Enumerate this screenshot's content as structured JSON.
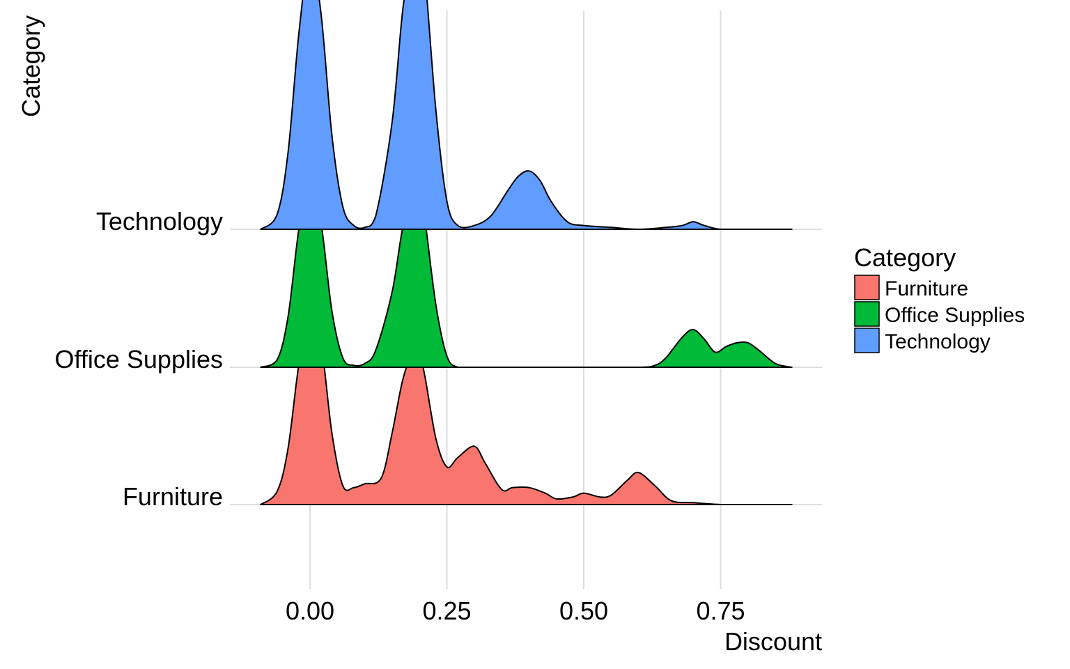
{
  "chart_data": {
    "type": "ridgeline",
    "title": "",
    "xlabel": "Discount",
    "ylabel": "Category",
    "xlim": [
      -0.1,
      0.88
    ],
    "xticks": [
      "0.00",
      "0.25",
      "0.50",
      "0.75"
    ],
    "xtick_values": [
      0,
      0.25,
      0.5,
      0.75
    ],
    "grid": true,
    "legend": {
      "title": "Category",
      "position": "right"
    },
    "series": [
      {
        "name": "Furniture",
        "color": "#F8766D",
        "density_x": [
          -0.09,
          -0.06,
          -0.04,
          -0.02,
          0.0,
          0.02,
          0.04,
          0.06,
          0.08,
          0.1,
          0.13,
          0.15,
          0.17,
          0.19,
          0.2,
          0.21,
          0.23,
          0.25,
          0.27,
          0.3,
          0.32,
          0.35,
          0.37,
          0.4,
          0.43,
          0.45,
          0.48,
          0.5,
          0.53,
          0.55,
          0.58,
          0.6,
          0.63,
          0.66,
          0.7,
          0.75,
          0.8,
          0.88
        ],
        "density_y": [
          0.0,
          0.07,
          0.3,
          0.75,
          1.0,
          0.86,
          0.38,
          0.1,
          0.09,
          0.11,
          0.14,
          0.38,
          0.67,
          0.82,
          0.8,
          0.68,
          0.35,
          0.2,
          0.25,
          0.31,
          0.22,
          0.08,
          0.09,
          0.09,
          0.06,
          0.03,
          0.04,
          0.06,
          0.04,
          0.05,
          0.13,
          0.17,
          0.1,
          0.02,
          0.01,
          0.0,
          0.0,
          0.0
        ]
      },
      {
        "name": "Office Supplies",
        "color": "#00BA38",
        "density_x": [
          -0.09,
          -0.06,
          -0.04,
          -0.02,
          0.0,
          0.02,
          0.04,
          0.06,
          0.08,
          0.1,
          0.12,
          0.15,
          0.17,
          0.19,
          0.2,
          0.21,
          0.23,
          0.25,
          0.27,
          0.3,
          0.4,
          0.5,
          0.6,
          0.63,
          0.65,
          0.68,
          0.7,
          0.72,
          0.74,
          0.76,
          0.78,
          0.8,
          0.82,
          0.85,
          0.88
        ],
        "density_y": [
          0.0,
          0.04,
          0.27,
          0.74,
          1.0,
          0.77,
          0.3,
          0.05,
          0.01,
          0.02,
          0.09,
          0.4,
          0.75,
          0.91,
          0.91,
          0.78,
          0.33,
          0.06,
          0.0,
          0.0,
          0.0,
          0.0,
          0.0,
          0.01,
          0.05,
          0.16,
          0.2,
          0.15,
          0.08,
          0.11,
          0.13,
          0.13,
          0.09,
          0.02,
          0.0
        ]
      },
      {
        "name": "Technology",
        "color": "#619CFF",
        "density_x": [
          -0.09,
          -0.06,
          -0.04,
          -0.02,
          0.0,
          0.02,
          0.04,
          0.06,
          0.08,
          0.1,
          0.12,
          0.15,
          0.17,
          0.19,
          0.2,
          0.21,
          0.23,
          0.25,
          0.27,
          0.3,
          0.33,
          0.36,
          0.38,
          0.4,
          0.42,
          0.44,
          0.47,
          0.5,
          0.55,
          0.6,
          0.65,
          0.68,
          0.7,
          0.72,
          0.75,
          0.8,
          0.88
        ],
        "density_y": [
          0.0,
          0.08,
          0.41,
          1.05,
          1.45,
          1.15,
          0.5,
          0.12,
          0.02,
          0.01,
          0.07,
          0.57,
          1.18,
          1.49,
          1.5,
          1.35,
          0.63,
          0.15,
          0.02,
          0.02,
          0.07,
          0.2,
          0.28,
          0.31,
          0.26,
          0.15,
          0.04,
          0.02,
          0.01,
          0.0,
          0.01,
          0.02,
          0.04,
          0.02,
          0.0,
          0.0,
          0.0
        ]
      }
    ]
  }
}
